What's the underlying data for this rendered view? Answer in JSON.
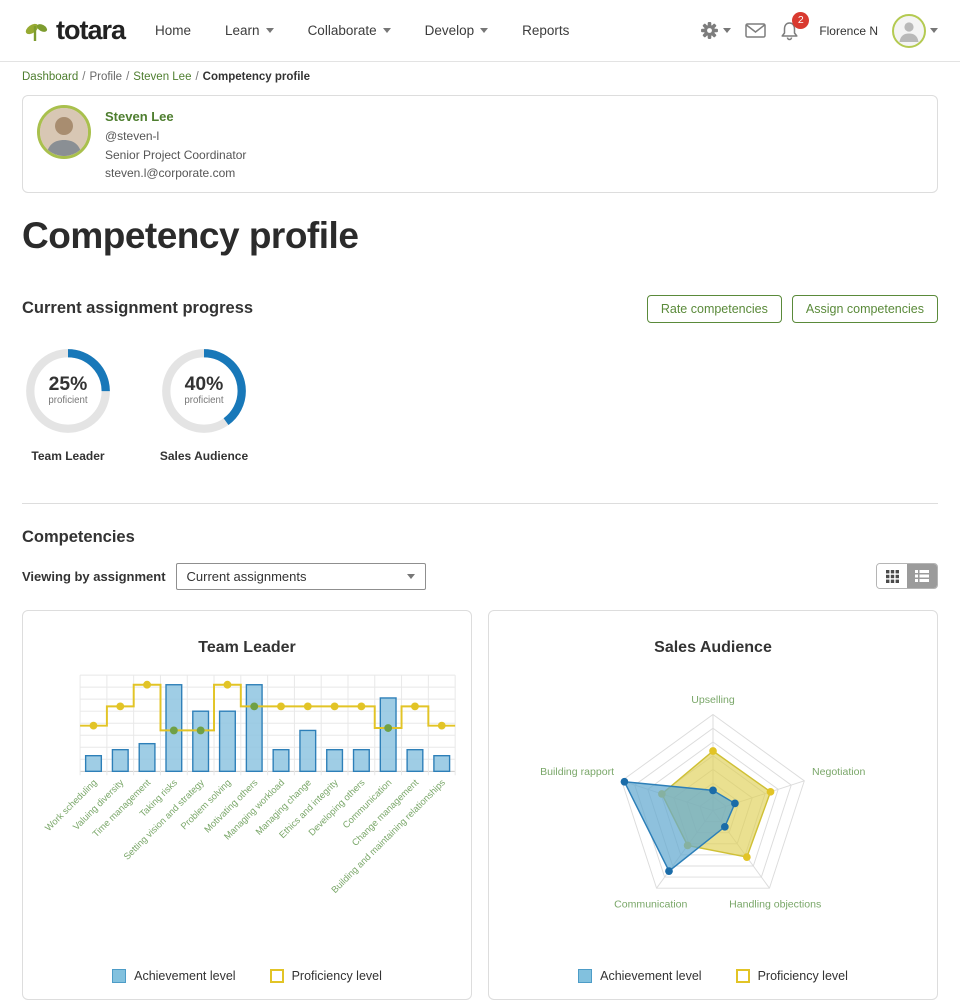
{
  "header": {
    "logo_text": "totara",
    "nav_items": [
      {
        "label": "Home",
        "dropdown": false
      },
      {
        "label": "Learn",
        "dropdown": true
      },
      {
        "label": "Collaborate",
        "dropdown": true
      },
      {
        "label": "Develop",
        "dropdown": true
      },
      {
        "label": "Reports",
        "dropdown": false
      }
    ],
    "notification_count": "2",
    "user_name": "Florence N"
  },
  "breadcrumb": [
    {
      "label": "Dashboard",
      "link": true
    },
    {
      "label": "Profile",
      "link": false
    },
    {
      "label": "Steven Lee",
      "link": true
    },
    {
      "label": "Competency profile",
      "current": true
    }
  ],
  "user_card": {
    "name": "Steven Lee",
    "username": "@steven-l",
    "role": "Senior Project Coordinator",
    "email": "steven.l@corporate.com"
  },
  "page_title": "Competency profile",
  "progress_section": {
    "heading": "Current assignment progress",
    "buttons": [
      "Rate competencies",
      "Assign competencies"
    ],
    "donuts": [
      {
        "percent": 25,
        "percent_label": "25%",
        "sublabel": "proficient",
        "title": "Team Leader"
      },
      {
        "percent": 40,
        "percent_label": "40%",
        "sublabel": "proficient",
        "title": "Sales Audience"
      }
    ]
  },
  "competencies_section": {
    "heading": "Competencies",
    "filter_label": "Viewing by assignment",
    "filter_value": "Current assignments",
    "view_modes": [
      "grid",
      "list"
    ]
  },
  "colors": {
    "brand_green": "#5a8a3a",
    "link_green": "#4e7e2f",
    "label_green": "#7aa769",
    "bar_fill": "#8ec4e0",
    "bar_stroke": "#2d7fb8",
    "line_yellow": "#e2c426",
    "dot_green": "#6fa046",
    "dot_blue": "#1b6ca8",
    "donut_blue": "#1878b9",
    "ring_gray": "#e4e4e4",
    "radar_yellow_fill": "#ded054",
    "radar_yellow_stroke": "#cfc035",
    "radar_blue_fill": "#62a9d0",
    "badge_red": "#d93a30"
  },
  "chart_data": [
    {
      "type": "bar",
      "title": "Team Leader",
      "categories": [
        "Work scheduling",
        "Valuing diversity",
        "Time management",
        "Taking risks",
        "Setting vision and strategy",
        "Problem solving",
        "Motivating others",
        "Managing workload",
        "Managing change",
        "Ethics and integrity",
        "Developing others",
        "Communication",
        "Change management",
        "Building and maintaining relationships"
      ],
      "series": [
        {
          "name": "Achievement level",
          "style": "bar",
          "values": [
            1.3,
            1.8,
            2.3,
            7.2,
            5.0,
            5.0,
            7.2,
            1.8,
            3.4,
            1.8,
            1.8,
            6.1,
            1.8,
            1.3
          ]
        },
        {
          "name": "Proficiency level",
          "style": "step-line",
          "values": [
            3.8,
            5.4,
            7.2,
            3.4,
            3.4,
            7.2,
            5.4,
            5.4,
            5.4,
            5.4,
            5.4,
            3.6,
            5.4,
            3.8
          ]
        }
      ],
      "ylim": [
        0,
        8
      ],
      "grid_rows": 8,
      "grid": true,
      "legend": [
        "Achievement level",
        "Proficiency level"
      ],
      "legend_position": "bottom"
    },
    {
      "type": "radar",
      "title": "Sales Audience",
      "categories": [
        "Upselling",
        "Negotiation",
        "Handling objections",
        "Communication",
        "Building rapport"
      ],
      "series": [
        {
          "name": "Achievement level",
          "values": [
            21,
            24,
            21,
            78,
            97
          ]
        },
        {
          "name": "Proficiency level",
          "values": [
            62,
            63,
            60,
            45,
            56
          ]
        }
      ],
      "max": 100,
      "rings": 7,
      "legend": [
        "Achievement level",
        "Proficiency level"
      ],
      "legend_position": "bottom"
    }
  ]
}
